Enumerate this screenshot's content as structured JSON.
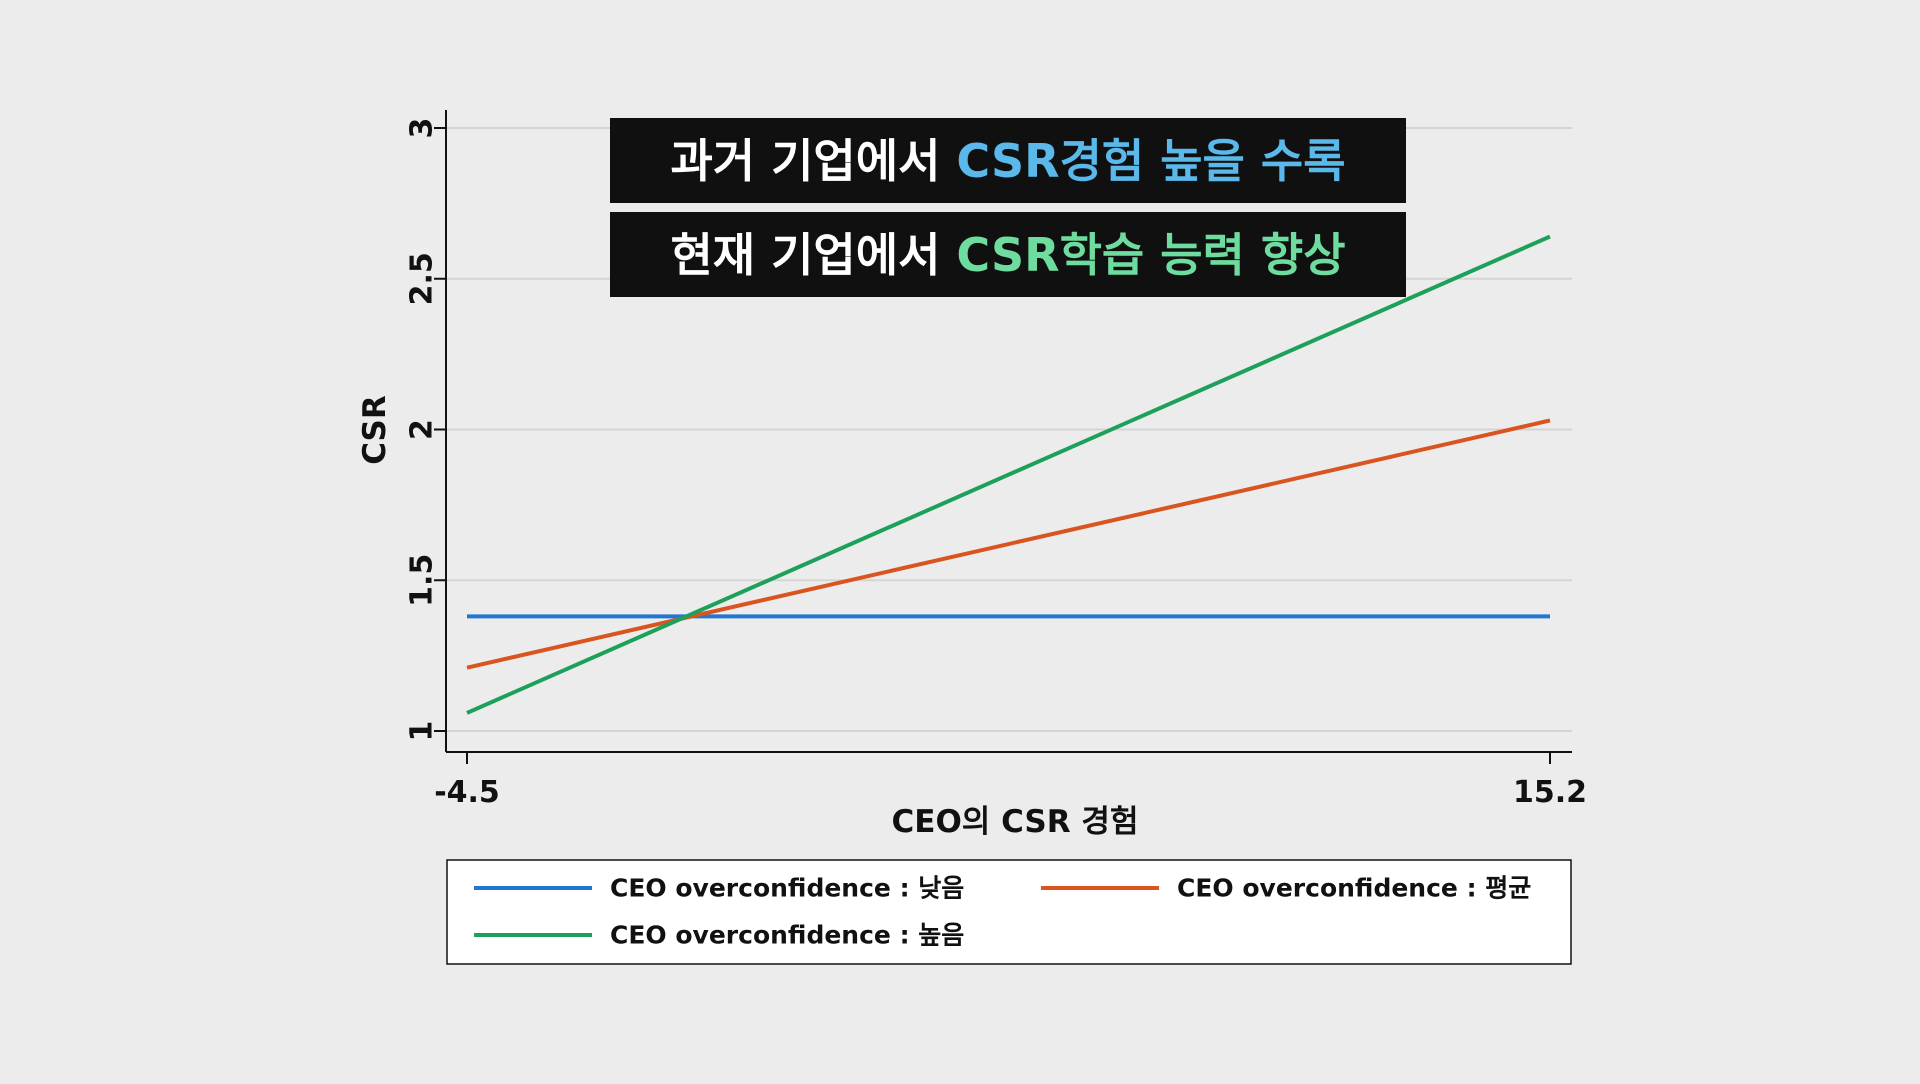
{
  "overlay": {
    "line1": {
      "white": "과거 기업에서 ",
      "highlight": "CSR경험 높을 수록",
      "highlight_color": "#5ab9ea"
    },
    "line2": {
      "white": "현재 기업에서 ",
      "highlight": "CSR학습 능력 향상",
      "highlight_color": "#6fdc9f"
    }
  },
  "chart_data": {
    "type": "line",
    "xlabel": "CEO의 CSR 경험",
    "ylabel": "CSR",
    "xlim": [
      -4.5,
      15.2
    ],
    "ylim": [
      1,
      3
    ],
    "x_ticks": [
      "-4.5",
      "15.2"
    ],
    "y_ticks": [
      "1",
      "1.5",
      "2",
      "2.5",
      "3"
    ],
    "grid": true,
    "legend_position": "bottom",
    "series": [
      {
        "name": "CEO overconfidence : 낮음",
        "color": "#1f77d2",
        "x": [
          -4.5,
          15.2
        ],
        "values": [
          1.38,
          1.38
        ]
      },
      {
        "name": "CEO overconfidence : 평균",
        "color": "#d9541e",
        "x": [
          -4.5,
          15.2
        ],
        "values": [
          1.21,
          2.03
        ]
      },
      {
        "name": "CEO overconfidence : 높음",
        "color": "#1da05a",
        "x": [
          -4.5,
          15.2
        ],
        "values": [
          1.06,
          2.64
        ]
      }
    ]
  }
}
